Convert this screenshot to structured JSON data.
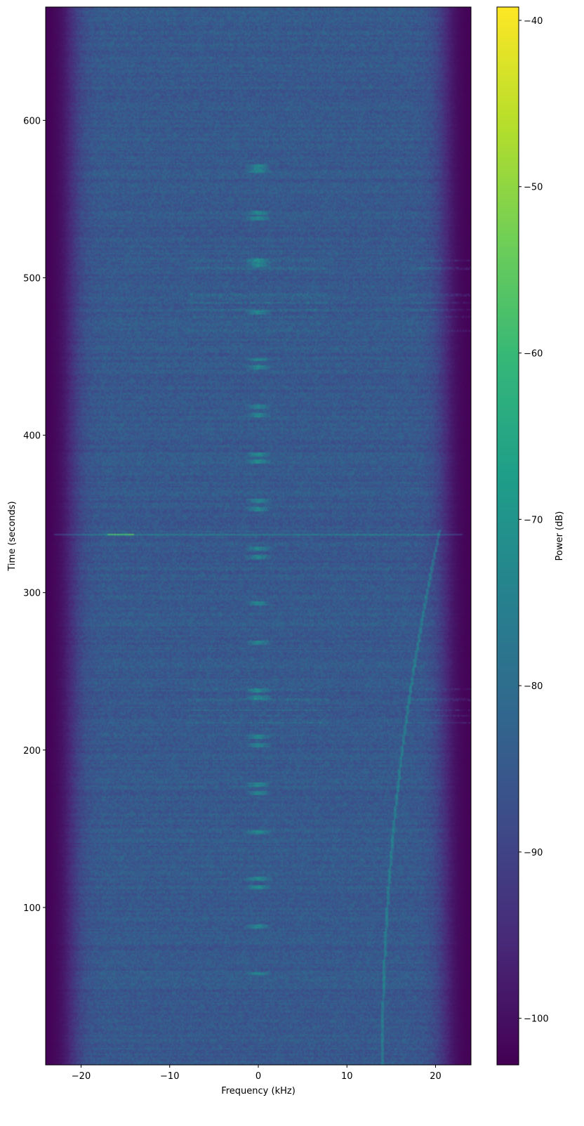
{
  "chart_data": {
    "type": "heatmap",
    "title": "",
    "xlabel": "Frequency (kHz)",
    "ylabel": "Time (seconds)",
    "xlim": [
      -24,
      24
    ],
    "ylim": [
      0,
      672
    ],
    "xticks": [
      -20,
      -10,
      0,
      10,
      20
    ],
    "xtick_labels": [
      "−20",
      "−10",
      "0",
      "10",
      "20"
    ],
    "yticks": [
      100,
      200,
      300,
      400,
      500,
      600
    ],
    "ytick_labels": [
      "100",
      "200",
      "300",
      "400",
      "500",
      "600"
    ],
    "colormap": "viridis",
    "colorbar": {
      "label": "Power (dB)",
      "range": [
        -102.8,
        -39.2
      ],
      "ticks": [
        -40,
        -50,
        -60,
        -70,
        -80,
        -90,
        -100
      ],
      "tick_labels": [
        "−40",
        "−50",
        "−60",
        "−70",
        "−80",
        "−90",
        "−100"
      ]
    },
    "noise_floor_db": -85,
    "band_edge_khz": 21,
    "center_bursts_s": [
      58,
      88,
      113,
      118,
      148,
      173,
      178,
      203,
      208,
      233,
      238,
      268,
      293,
      323,
      328,
      353,
      358,
      383,
      388,
      413,
      418,
      443,
      448,
      478,
      508,
      511,
      538,
      541,
      568,
      571
    ],
    "strong_line_s": 337,
    "wideband_events_s": [
      217,
      222,
      225,
      232,
      239,
      466,
      475,
      480,
      484,
      489,
      506,
      511
    ]
  }
}
